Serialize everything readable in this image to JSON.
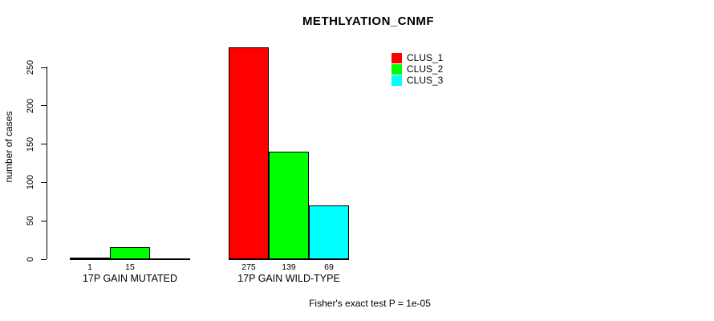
{
  "chart_data": {
    "type": "bar",
    "title": "METHLYATION_CNMF",
    "ylabel": "number of cases",
    "ylim": [
      0,
      275
    ],
    "yticks": [
      0,
      50,
      100,
      150,
      200,
      250
    ],
    "grid": false,
    "legend_position": "top-right",
    "series": [
      {
        "name": "CLUS_1",
        "color": "#ff0000"
      },
      {
        "name": "CLUS_2",
        "color": "#00ff00"
      },
      {
        "name": "CLUS_3",
        "color": "#00ffff"
      }
    ],
    "categories": [
      "17P GAIN MUTATED",
      "17P GAIN WILD-TYPE"
    ],
    "groups": [
      {
        "label": "17P GAIN MUTATED",
        "values": [
          1,
          15,
          0
        ],
        "bar_labels": [
          "1",
          "15",
          ""
        ]
      },
      {
        "label": "17P GAIN WILD-TYPE",
        "values": [
          275,
          139,
          69
        ],
        "bar_labels": [
          "275",
          "139",
          "69"
        ]
      }
    ],
    "footnote": "Fisher's exact test P = 1e-05"
  }
}
